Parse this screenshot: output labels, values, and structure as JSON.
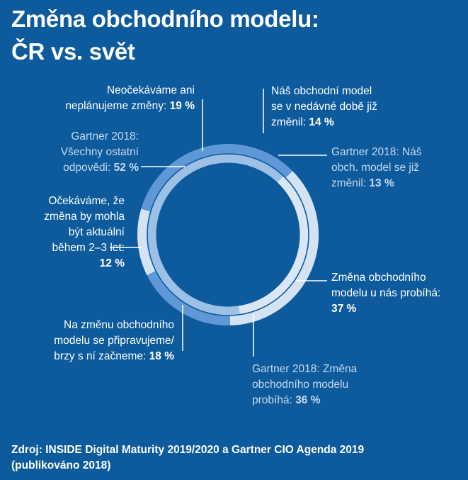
{
  "title_line1": "Změna obchodního modelu:",
  "title_line2": "ČR vs. svět",
  "colors": {
    "background": "#0d5a9c",
    "outer_ring_dark": "#5f98d6",
    "outer_ring_light": "#d4e3f4",
    "inner_ring_dark": "#9cc0e6",
    "inner_ring_light": "#d9e6f5",
    "separator": "#0d5a9c",
    "leader": "#ffffff"
  },
  "chart_data": {
    "type": "pie",
    "title": "Změna obchodního modelu: ČR vs. svět",
    "series": [
      {
        "name": "INSIDE Digital Maturity 2019/2020 (ČR)",
        "ring": "outer",
        "slices": [
          {
            "label": "Náš obchodní model se v nedávné době již změnil:",
            "value": 14,
            "value_label": "14 %",
            "shade": "dark"
          },
          {
            "label": "Změna obchodního modelu u nás probíhá:",
            "value": 37,
            "value_label": "37 %",
            "shade": "light"
          },
          {
            "label": "Na změnu obchodního modelu se připravujeme/ brzy s ní začneme:",
            "value": 18,
            "value_label": "18 %",
            "shade": "dark"
          },
          {
            "label": "Očekáváme, že změna by mohla být aktuální během 2–3 let:",
            "value": 12,
            "value_label": "12 %",
            "shade": "light"
          },
          {
            "label": "Neočekáváme ani neplánujeme změny:",
            "value": 19,
            "value_label": "19 %",
            "shade": "dark"
          }
        ]
      },
      {
        "name": "Gartner CIO Agenda 2019 (svět)",
        "ring": "inner",
        "slices": [
          {
            "label": "Gartner 2018: Náš obch. model se již změnil:",
            "value": 13,
            "value_label": "13 %",
            "shade": "dark"
          },
          {
            "label": "Gartner 2018: Změna obchodního modelu probíhá:",
            "value": 36,
            "value_label": "36 %",
            "shade": "light"
          },
          {
            "label": "Gartner 2018: Všechny ostatní odpovědi:",
            "value": 52,
            "value_label": "52 %",
            "shade": "dark"
          }
        ]
      }
    ]
  },
  "labels": {
    "neocekavame": {
      "line1": "Neočekáváme ani",
      "line2_text": "neplánujeme změny: ",
      "pct": "19 %"
    },
    "zmenil": {
      "line1": "Náš obchodní model",
      "line2": "se v nedávné době již",
      "line3_text": "změnil: ",
      "pct": "14 %"
    },
    "g_vsechny": {
      "line1": "Gartner 2018:",
      "line2": "Všechny ostatní",
      "line3_text": "odpovědi: ",
      "pct": "52 %"
    },
    "g_zmenil": {
      "line1": "Gartner 2018: Náš",
      "line2": "obch. model se již",
      "line3_text": "změnil: ",
      "pct": "13 %"
    },
    "ocekavame": {
      "line1": "Očekáváme, že",
      "line2": "změna by mohla",
      "line3": "být aktuální",
      "line4": "během 2–3 let:",
      "pct": "12 %"
    },
    "probiha": {
      "line1": "Změna obchodního",
      "line2": "modelu u nás probíhá:",
      "pct": "37 %"
    },
    "pripravujeme": {
      "line1": "Na změnu obchodního",
      "line2": "modelu se připravujeme/",
      "line3_text": "brzy s ní začneme: ",
      "pct": "18 %"
    },
    "g_probiha": {
      "line1": "Gartner 2018: Změna",
      "line2": "obchodního modelu",
      "line3_text": "probíhá: ",
      "pct": "36 %"
    }
  },
  "source": {
    "line1": "Zdroj: INSIDE Digital Maturity 2019/2020 a Gartner CIO Agenda 2019",
    "line2": "(publikováno 2018)"
  }
}
